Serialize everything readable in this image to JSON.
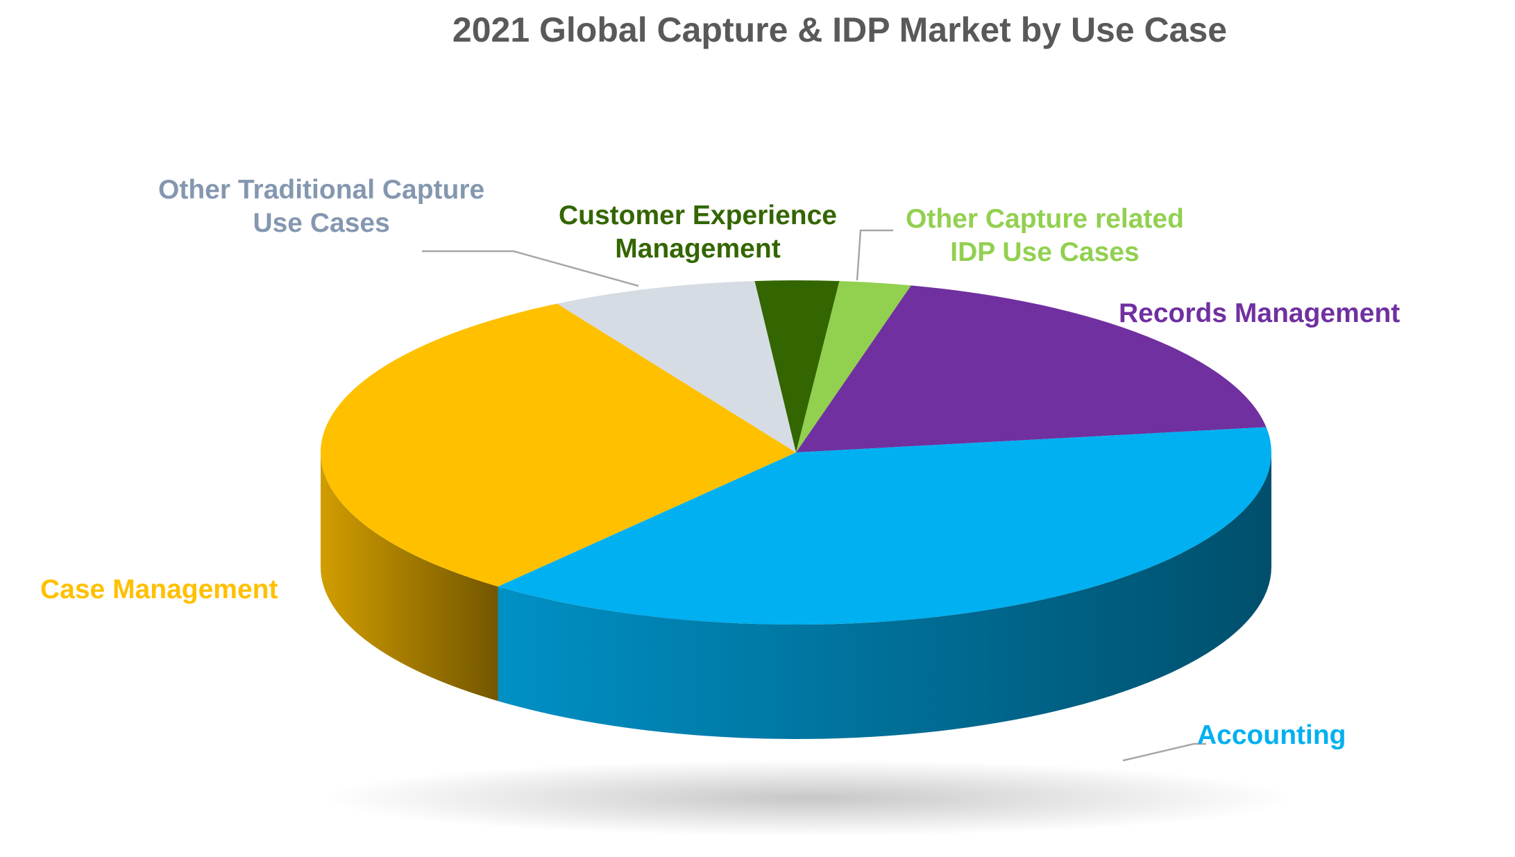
{
  "chart_data": {
    "type": "pie",
    "title": "2021 Global Capture & IDP Market by Use Case",
    "slices": [
      {
        "label": "Records Management",
        "value": 18.5,
        "color": "#7030A0"
      },
      {
        "label": "Accounting",
        "value": 37.6,
        "color": "#00B0F0"
      },
      {
        "label": "Case Management",
        "value": 30.4,
        "color": "#FFC000"
      },
      {
        "label": "Other Traditional Capture Use Cases",
        "value": 6.9,
        "color": "#D6DCE4"
      },
      {
        "label": "Customer Experience Management",
        "value": 2.8,
        "color": "#336600"
      },
      {
        "label": "Other Capture related IDP Use Cases",
        "value": 2.4,
        "color": "#92D050"
      }
    ],
    "legend": "none",
    "data_labels": "category names with leader lines"
  },
  "labels": {
    "records": "Records Management",
    "accounting": "Accounting",
    "case_mgmt": "Case Management",
    "other_trad_line1": "Other Traditional Capture",
    "other_trad_line2": "Use Cases",
    "cem_line1": "Customer Experience",
    "cem_line2": "Management",
    "other_idp_line1": "Other Capture related",
    "other_idp_line2": "IDP Use Cases"
  }
}
